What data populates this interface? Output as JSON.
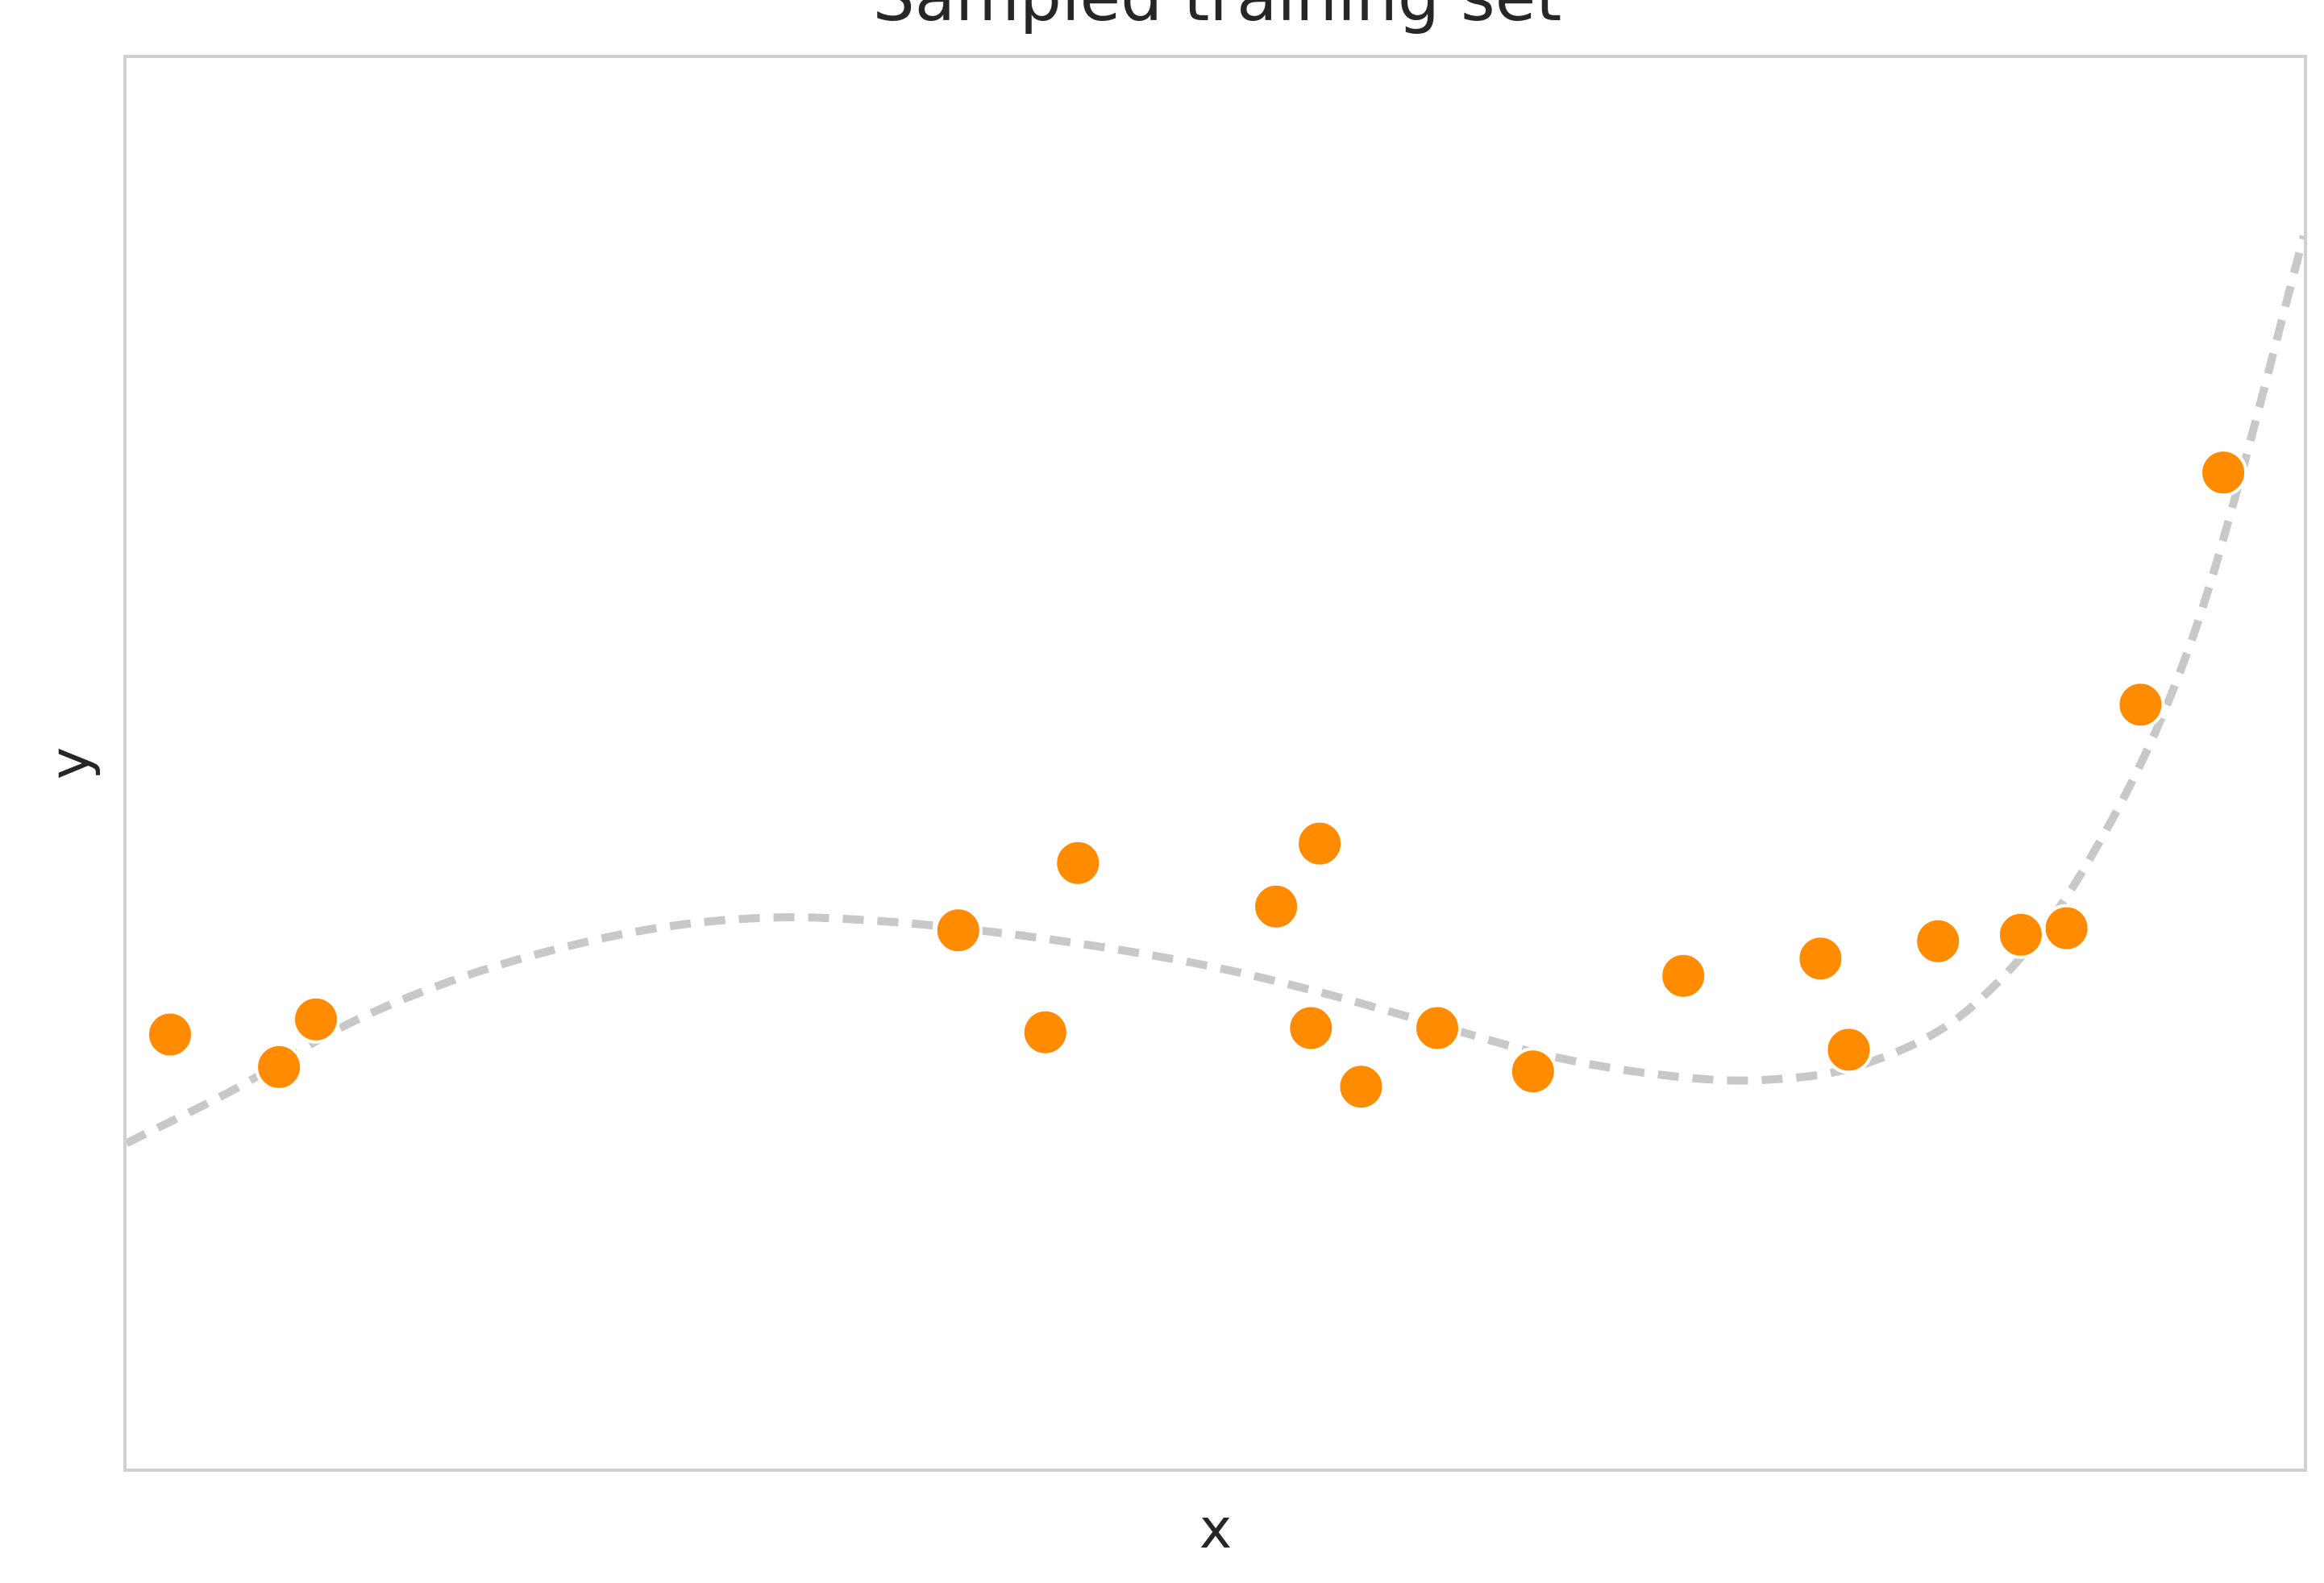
{
  "chart_data": {
    "type": "scatter",
    "title": "Sampled training set",
    "xlabel": "x",
    "ylabel": "y",
    "xlim": [
      0,
      1
    ],
    "ylim": [
      -2.5,
      4
    ],
    "grid": false,
    "legend": "none",
    "series": [
      {
        "kind": "points",
        "color": "#ff8c00",
        "x": [
          0.02,
          0.07,
          0.087,
          0.382,
          0.422,
          0.437,
          0.528,
          0.544,
          0.548,
          0.567,
          0.602,
          0.646,
          0.715,
          0.778,
          0.791,
          0.832,
          0.87,
          0.891,
          0.925,
          0.963
        ],
        "y": [
          -0.5,
          -0.65,
          -0.43,
          -0.02,
          -0.49,
          0.29,
          0.09,
          -0.47,
          0.38,
          -0.74,
          -0.47,
          -0.67,
          -0.23,
          -0.15,
          -0.57,
          -0.07,
          -0.04,
          -0.01,
          1.02,
          2.09
        ]
      },
      {
        "kind": "curve",
        "style": "dashed",
        "color": "#c8c8c8",
        "x": [
          0,
          0.05,
          0.1,
          0.15,
          0.2,
          0.25,
          0.3,
          0.35,
          0.4,
          0.45,
          0.5,
          0.55,
          0.6,
          0.65,
          0.7,
          0.75,
          0.8,
          0.85,
          0.9,
          0.95,
          1.0
        ],
        "y": [
          -1.0,
          -0.75,
          -0.46,
          -0.25,
          -0.1,
          0.0,
          0.04,
          0.02,
          -0.03,
          -0.1,
          -0.19,
          -0.31,
          -0.45,
          -0.59,
          -0.68,
          -0.71,
          -0.63,
          -0.35,
          0.28,
          1.36,
          3.18
        ]
      }
    ]
  }
}
